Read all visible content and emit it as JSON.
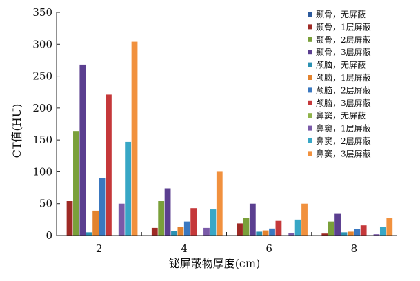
{
  "chart_data": {
    "type": "bar",
    "title": "",
    "xlabel": "铋屏蔽物厚度(cm)",
    "ylabel": "CT值(HU)",
    "categories": [
      "2",
      "4",
      "6",
      "8"
    ],
    "ylim": [
      0,
      350
    ],
    "yticks": [
      0,
      50,
      100,
      150,
      200,
      250,
      300,
      350
    ],
    "grid": false,
    "legend_position": "top-right",
    "series": [
      {
        "name": "颞骨，无屏蔽",
        "color": "#2d5a9c",
        "values": [
          0,
          0,
          0,
          0
        ]
      },
      {
        "name": "颞骨，1层屏蔽",
        "color": "#9e2a25",
        "values": [
          54,
          12,
          19,
          3
        ]
      },
      {
        "name": "颞骨，2层屏蔽",
        "color": "#7aa03a",
        "values": [
          164,
          54,
          28,
          22
        ]
      },
      {
        "name": "颞骨，3层屏蔽",
        "color": "#5b3f90",
        "values": [
          268,
          74,
          50,
          35
        ]
      },
      {
        "name": "颅脑，无屏蔽",
        "color": "#2b91b2",
        "values": [
          5,
          7,
          6,
          5
        ]
      },
      {
        "name": "颅脑，1层屏蔽",
        "color": "#e3832e",
        "values": [
          39,
          13,
          8,
          6
        ]
      },
      {
        "name": "颅脑，2层屏蔽",
        "color": "#3a78c0",
        "values": [
          90,
          22,
          11,
          10
        ]
      },
      {
        "name": "颅脑，3层屏蔽",
        "color": "#c5383a",
        "values": [
          221,
          43,
          23,
          16
        ]
      },
      {
        "name": "鼻窦，无屏蔽",
        "color": "#8fb34a",
        "values": [
          0,
          0,
          0,
          0
        ]
      },
      {
        "name": "鼻窦，1层屏蔽",
        "color": "#7a5aa8",
        "values": [
          50,
          12,
          4,
          2
        ]
      },
      {
        "name": "鼻窦，2层屏蔽",
        "color": "#38a7c6",
        "values": [
          147,
          41,
          25,
          13
        ]
      },
      {
        "name": "鼻窦，3层屏蔽",
        "color": "#f1913e",
        "values": [
          304,
          100,
          50,
          27
        ]
      }
    ]
  }
}
